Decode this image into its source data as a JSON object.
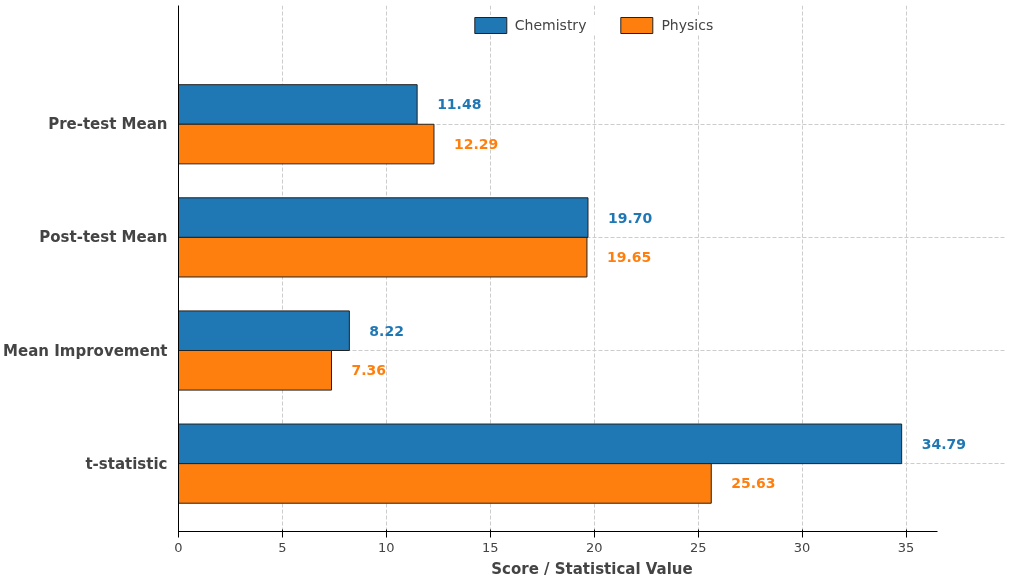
{
  "chart_data": {
    "type": "bar",
    "orientation": "horizontal",
    "categories": [
      "Pre-test Mean",
      "Post-test Mean",
      "Mean Improvement",
      "t-statistic"
    ],
    "series": [
      {
        "name": "Chemistry",
        "color": "#1f77b4",
        "values": [
          11.48,
          19.7,
          8.22,
          34.79
        ],
        "value_labels": [
          "11.48",
          "19.70",
          "8.22",
          "34.79"
        ]
      },
      {
        "name": "Physics",
        "color": "#ff7f0e",
        "values": [
          12.29,
          19.65,
          7.36,
          25.63
        ],
        "value_labels": [
          "12.29",
          "19.65",
          "7.36",
          "25.63"
        ]
      }
    ],
    "xlim": [
      0,
      36.5
    ],
    "xticks": [
      0,
      5,
      10,
      15,
      20,
      25,
      30,
      35
    ],
    "xlabel": "Score / Statistical Value",
    "grid": true,
    "legend": "top"
  }
}
